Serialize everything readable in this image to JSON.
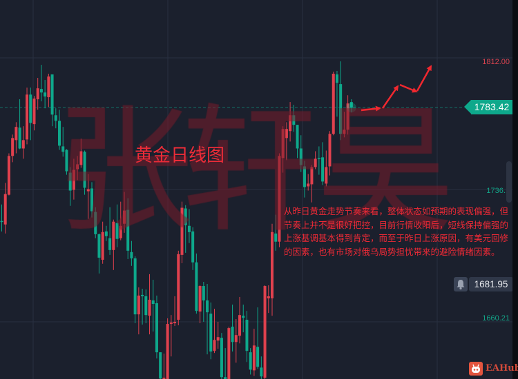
{
  "title": "黄金日线图",
  "watermark": [
    "张",
    "轩",
    "昊"
  ],
  "annotation": "从昨日黄金走势节奏来看，整体状态如预期的表现偏强，但节奏上并不是很好把控，目前行情收阳后，短线保持偏强的上涨基调基本得到肯定，而至于昨日上涨原因，有美元回修的因素，也有市场对俄乌局势担忧带来的避险情绪因素。",
  "price_axis": {
    "labels": [
      {
        "value": "1812.00",
        "color": "#d9434f"
      },
      {
        "value": "1736.1",
        "color": "#13a589"
      },
      {
        "value": "1660.21",
        "color": "#13a589"
      }
    ],
    "last_price": "1783.42",
    "alert_price": "1681.95"
  },
  "icons": {
    "alert": "bell-icon",
    "logo": "eahub-robot-icon"
  },
  "logo_text": "EAHub",
  "colors": {
    "up": "#e0414e",
    "down": "#0ea88b",
    "background": "#1b202d",
    "annotation": "#ee2a36",
    "arrows": "#f0282f"
  },
  "chart_data": {
    "type": "candlestick",
    "title": "黄金日线图",
    "ylim": [
      1626,
      1820
    ],
    "y_ticks": [
      1812.0,
      1736.1,
      1660.21
    ],
    "last_price": 1783.42,
    "grid": true,
    "up_color": "#e0414e",
    "down_color": "#0ea88b",
    "ohlc": [
      [
        1718.2,
        1727.7,
        1712.2,
        1717.8
      ],
      [
        1716.2,
        1740.1,
        1711.0,
        1733.7
      ],
      [
        1733.3,
        1757.1,
        1732.9,
        1755.6
      ],
      [
        1755.6,
        1767.9,
        1752.0,
        1765.9
      ],
      [
        1764.7,
        1775.0,
        1757.1,
        1772.3
      ],
      [
        1771.9,
        1788.2,
        1759.5,
        1759.9
      ],
      [
        1759.9,
        1772.7,
        1754.0,
        1764.7
      ],
      [
        1765.1,
        1794.9,
        1762.3,
        1790.9
      ],
      [
        1790.9,
        1794.9,
        1764.7,
        1774.6
      ],
      [
        1773.9,
        1790.1,
        1770.3,
        1788.6
      ],
      [
        1788.2,
        1800.5,
        1782.2,
        1794.5
      ],
      [
        1794.1,
        1808.0,
        1787.0,
        1792.1
      ],
      [
        1792.1,
        1799.3,
        1783.0,
        1789.8
      ],
      [
        1789.4,
        1802.9,
        1783.8,
        1801.3
      ],
      [
        1802.5,
        1802.5,
        1772.7,
        1779.4
      ],
      [
        1779.0,
        1783.0,
        1771.5,
        1775.8
      ],
      [
        1775.8,
        1782.2,
        1759.1,
        1761.5
      ],
      [
        1761.1,
        1772.3,
        1755.2,
        1758.0
      ],
      [
        1759.1,
        1759.5,
        1744.8,
        1746.8
      ],
      [
        1746.0,
        1749.2,
        1726.9,
        1735.7
      ],
      [
        1736.1,
        1754.0,
        1730.5,
        1747.6
      ],
      [
        1748.0,
        1755.6,
        1741.7,
        1750.8
      ],
      [
        1750.4,
        1765.5,
        1748.8,
        1758.3
      ],
      [
        1758.0,
        1758.7,
        1733.3,
        1737.3
      ],
      [
        1735.3,
        1745.2,
        1719.4,
        1736.5
      ],
      [
        1736.9,
        1740.5,
        1720.2,
        1723.8
      ],
      [
        1723.4,
        1726.1,
        1708.3,
        1710.6
      ],
      [
        1710.6,
        1711.0,
        1688.0,
        1697.1
      ],
      [
        1695.9,
        1717.8,
        1693.6,
        1711.8
      ],
      [
        1712.2,
        1715.4,
        1706.7,
        1709.5
      ],
      [
        1708.3,
        1726.1,
        1698.7,
        1701.5
      ],
      [
        1701.5,
        1719.0,
        1690.0,
        1717.8
      ],
      [
        1717.0,
        1727.7,
        1703.1,
        1707.9
      ],
      [
        1708.3,
        1729.3,
        1707.1,
        1715.4
      ],
      [
        1716.6,
        1734.9,
        1711.4,
        1724.2
      ],
      [
        1724.6,
        1731.3,
        1696.3,
        1701.1
      ],
      [
        1700.3,
        1706.7,
        1692.4,
        1696.7
      ],
      [
        1696.7,
        1697.9,
        1659.4,
        1664.5
      ],
      [
        1664.5,
        1680.0,
        1653.0,
        1675.3
      ],
      [
        1675.7,
        1679.2,
        1658.6,
        1674.9
      ],
      [
        1674.9,
        1678.8,
        1659.4,
        1664.1
      ],
      [
        1663.7,
        1687.6,
        1653.0,
        1672.9
      ],
      [
        1672.5,
        1684.4,
        1654.6,
        1670.5
      ],
      [
        1670.9,
        1675.3,
        1639.1,
        1642.7
      ],
      [
        1642.7,
        1642.7,
        1626.8,
        1627.6
      ],
      [
        1627.2,
        1641.9,
        1626.8,
        1628.0
      ],
      [
        1627.2,
        1662.2,
        1626.8,
        1659.0
      ],
      [
        1659.0,
        1664.1,
        1640.3,
        1659.8
      ],
      [
        1659.4,
        1674.9,
        1657.8,
        1660.2
      ],
      [
        1661.4,
        1701.1,
        1658.2,
        1699.1
      ],
      [
        1698.7,
        1729.3,
        1693.9,
        1725.8
      ],
      [
        1725.4,
        1727.3,
        1699.9,
        1715.8
      ],
      [
        1715.4,
        1725.0,
        1705.5,
        1711.8
      ],
      [
        1712.2,
        1714.6,
        1690.0,
        1694.4
      ],
      [
        1694.4,
        1699.5,
        1664.9,
        1666.5
      ],
      [
        1666.1,
        1681.2,
        1659.4,
        1680.8
      ],
      [
        1680.8,
        1683.2,
        1660.2,
        1672.5
      ],
      [
        1672.5,
        1682.0,
        1641.5,
        1665.7
      ],
      [
        1664.9,
        1671.3,
        1638.7,
        1643.1
      ],
      [
        1643.5,
        1667.7,
        1642.3,
        1649.8
      ],
      [
        1649.4,
        1660.2,
        1644.7,
        1651.4
      ],
      [
        1651.0,
        1653.8,
        1626.8,
        1628.4
      ],
      [
        1628.4,
        1645.1,
        1626.8,
        1627.2
      ],
      [
        1626.8,
        1657.4,
        1626.8,
        1656.6
      ],
      [
        1657.4,
        1670.1,
        1643.1,
        1648.6
      ],
      [
        1648.6,
        1661.8,
        1636.7,
        1652.6
      ],
      [
        1652.2,
        1674.5,
        1647.8,
        1664.1
      ],
      [
        1663.7,
        1670.1,
        1654.2,
        1662.5
      ],
      [
        1661.4,
        1666.5,
        1637.1,
        1643.5
      ],
      [
        1642.7,
        1645.1,
        1629.9,
        1632.7
      ],
      [
        1632.3,
        1656.2,
        1629.1,
        1646.6
      ],
      [
        1645.8,
        1668.5,
        1633.1,
        1634.3
      ],
      [
        1633.9,
        1640.3,
        1626.8,
        1628.8
      ],
      [
        1628.0,
        1681.2,
        1626.8,
        1680.8
      ],
      [
        1673.7,
        1681.2,
        1665.3,
        1674.9
      ],
      [
        1673.7,
        1716.6,
        1663.7,
        1711.8
      ],
      [
        1711.0,
        1721.8,
        1701.1,
        1706.3
      ],
      [
        1706.3,
        1757.1,
        1703.1,
        1755.6
      ],
      [
        1754.4,
        1772.7,
        1746.0,
        1771.1
      ],
      [
        1765.9,
        1775.0,
        1753.2,
        1771.1
      ],
      [
        1769.9,
        1786.6,
        1763.9,
        1779.0
      ],
      [
        1779.0,
        1785.0,
        1769.5,
        1773.5
      ],
      [
        1773.5,
        1773.5,
        1754.4,
        1759.9
      ],
      [
        1759.9,
        1767.5,
        1746.4,
        1750.4
      ],
      [
        1749.6,
        1752.8,
        1731.7,
        1737.7
      ],
      [
        1738.1,
        1745.2,
        1735.7,
        1739.7
      ],
      [
        1739.3,
        1750.4,
        1728.9,
        1749.2
      ],
      [
        1749.2,
        1758.3,
        1748.0,
        1754.0
      ],
      [
        1754.4,
        1761.1,
        1744.8,
        1754.0
      ],
      [
        1754.8,
        1763.5,
        1738.9,
        1740.9
      ],
      [
        1739.7,
        1758.7,
        1738.1,
        1749.2
      ],
      [
        1749.6,
        1769.9,
        1744.4,
        1768.3
      ],
      [
        1768.3,
        1804.1,
        1767.5,
        1802.9
      ],
      [
        1802.5,
        1804.5,
        1778.2,
        1797.7
      ],
      [
        1796.9,
        1810.0,
        1764.7,
        1768.3
      ],
      [
        1768.3,
        1781.0,
        1766.3,
        1770.7
      ],
      [
        1770.7,
        1790.5,
        1767.9,
        1785.8
      ],
      [
        1786.6,
        1788.2,
        1780.6,
        1783.42
      ]
    ]
  }
}
